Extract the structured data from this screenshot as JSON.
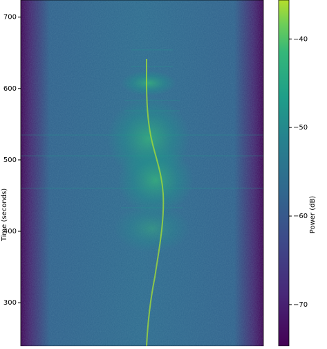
{
  "chart_data": {
    "type": "spectrogram",
    "ylabel": "Time (seconds)",
    "ylim": [
      239,
      724
    ],
    "yticks": [
      300,
      400,
      500,
      600,
      700
    ],
    "colorbar_label": "Power (dB)",
    "colormap": "viridis",
    "clim": [
      -74.7,
      -35.6
    ],
    "cticks": [
      {
        "value": -70,
        "label": "−70"
      },
      {
        "value": -60,
        "label": "−60"
      },
      {
        "value": -50,
        "label": "−50"
      },
      {
        "value": -40,
        "label": "−40"
      }
    ]
  }
}
